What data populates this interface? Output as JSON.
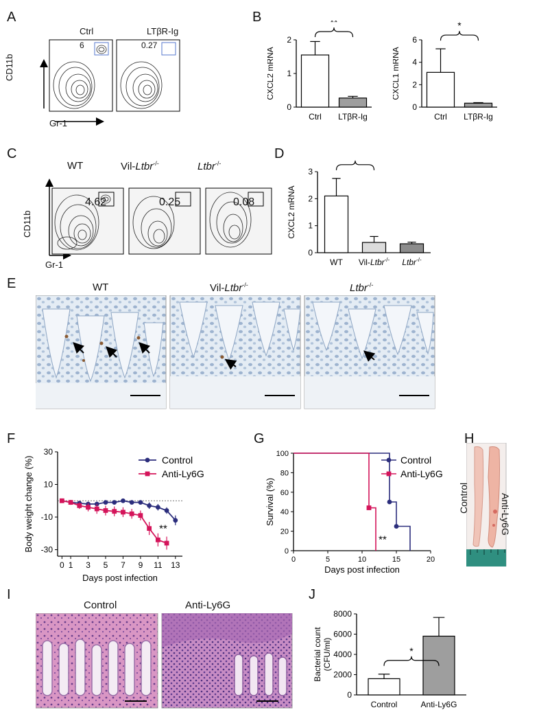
{
  "panel_letters": [
    "A",
    "B",
    "C",
    "D",
    "E",
    "F",
    "G",
    "H",
    "I",
    "J"
  ],
  "A": {
    "gates": [
      {
        "title": "Ctrl",
        "value": "6"
      },
      {
        "title": "LTβR-Ig",
        "value": "0.27"
      }
    ],
    "y_axis": "CD11b",
    "x_axis": "Gr-1"
  },
  "C": {
    "gates": [
      {
        "title": "WT",
        "value": "4.62"
      },
      {
        "title_prefix": "Vil-",
        "title_gene": "Ltbr",
        "title_sup": "-/-",
        "value": "0.25"
      },
      {
        "title_prefix": "",
        "title_gene": "Ltbr",
        "title_sup": "-/-",
        "value": "0.08"
      }
    ],
    "y_axis": "CD11b",
    "x_axis": "Gr-1"
  },
  "E": {
    "titles": [
      {
        "prefix": "WT",
        "gene": "",
        "sup": ""
      },
      {
        "prefix": "Vil-",
        "gene": "Ltbr",
        "sup": "-/-"
      },
      {
        "prefix": "",
        "gene": "Ltbr",
        "sup": "-/-"
      }
    ]
  },
  "H": {
    "labels": [
      "Control",
      "Anti-Ly6G"
    ]
  },
  "I": {
    "titles": [
      "Control",
      "Anti-Ly6G"
    ]
  },
  "chart_data": [
    {
      "id": "B1",
      "type": "bar",
      "categories": [
        "Ctrl",
        "LTβR-Ig"
      ],
      "values": [
        1.55,
        0.27
      ],
      "errors": [
        0.4,
        0.05
      ],
      "ylabel": "CXCL2 mRNA",
      "ylim": [
        0,
        2
      ],
      "yticks": [
        0,
        1,
        2
      ],
      "significance": "**",
      "colors": [
        "#ffffff",
        "#9e9e9e"
      ]
    },
    {
      "id": "B2",
      "type": "bar",
      "categories": [
        "Ctrl",
        "LTβR-Ig"
      ],
      "values": [
        3.1,
        0.35
      ],
      "errors": [
        2.1,
        0.05
      ],
      "ylabel": "CXCL1 mRNA",
      "ylim": [
        0,
        6
      ],
      "yticks": [
        0,
        2,
        4,
        6
      ],
      "significance": "*",
      "colors": [
        "#ffffff",
        "#9e9e9e"
      ]
    },
    {
      "id": "D",
      "type": "bar",
      "categories": [
        "WT",
        "Vil-Ltbr-/-",
        "Ltbr-/-"
      ],
      "values": [
        2.1,
        0.38,
        0.33
      ],
      "errors": [
        0.65,
        0.22,
        0.06
      ],
      "ylabel": "CXCL2 mRNA",
      "ylim": [
        0,
        3
      ],
      "yticks": [
        0,
        1,
        2,
        3
      ],
      "significance": "*",
      "colors": [
        "#ffffff",
        "#dcdcdc",
        "#8c8c8c"
      ]
    },
    {
      "id": "F",
      "type": "line",
      "xlabel": "Days post infection",
      "ylabel": "Body weight change (%)",
      "xlim": [
        -0.5,
        13.8
      ],
      "ylim": [
        -34,
        30
      ],
      "xticks": [
        0,
        1,
        3,
        5,
        7,
        9,
        11,
        13
      ],
      "yticks": [
        -30,
        -10,
        10,
        30
      ],
      "significance": "**",
      "series": [
        {
          "name": "Control",
          "color": "#2b2d7c",
          "x": [
            0,
            1,
            2,
            3,
            4,
            5,
            6,
            7,
            8,
            9,
            10,
            11,
            12,
            13
          ],
          "y": [
            0,
            -1,
            -1.5,
            -2,
            -2,
            -1,
            -1,
            0,
            -1,
            -1,
            -3,
            -4,
            -6,
            -12
          ],
          "err": [
            1,
            1,
            1,
            1,
            1,
            1,
            1,
            1,
            1,
            1,
            2,
            2,
            2,
            3
          ]
        },
        {
          "name": "Anti-Ly6G",
          "color": "#d4145a",
          "x": [
            0,
            1,
            2,
            3,
            4,
            5,
            6,
            7,
            8,
            9,
            10,
            11,
            12
          ],
          "y": [
            0,
            -1,
            -3,
            -4,
            -5,
            -6,
            -6.5,
            -7,
            -8,
            -9,
            -17,
            -24,
            -26
          ],
          "err": [
            1,
            1.5,
            2,
            2.5,
            3,
            3,
            3,
            3,
            3,
            3,
            4,
            4,
            4
          ]
        }
      ]
    },
    {
      "id": "G",
      "type": "line",
      "xlabel": "Days post infection",
      "ylabel": "Survival (%)",
      "xlim": [
        0,
        20
      ],
      "ylim": [
        0,
        100
      ],
      "xticks": [
        0,
        5,
        10,
        15,
        20
      ],
      "yticks": [
        0,
        20,
        40,
        60,
        80,
        100
      ],
      "significance": "**",
      "series": [
        {
          "name": "Control",
          "color": "#2b2d7c",
          "steps": [
            [
              0,
              100
            ],
            [
              14,
              100
            ],
            [
              14,
              50
            ],
            [
              15,
              50
            ],
            [
              15,
              25
            ],
            [
              17,
              25
            ],
            [
              17,
              0
            ]
          ],
          "markers": [
            [
              14,
              50
            ],
            [
              15,
              25
            ]
          ]
        },
        {
          "name": "Anti-Ly6G",
          "color": "#d4145a",
          "steps": [
            [
              0,
              100
            ],
            [
              11,
              100
            ],
            [
              11,
              44
            ],
            [
              12,
              44
            ],
            [
              12,
              0
            ]
          ],
          "markers": [
            [
              11,
              44
            ]
          ]
        }
      ]
    },
    {
      "id": "J",
      "type": "bar",
      "categories": [
        "Control",
        "Anti-Ly6G"
      ],
      "values": [
        1600,
        5800
      ],
      "errors": [
        450,
        1850
      ],
      "ylabel": "Bacterial count (CFU/ml)",
      "ylim": [
        0,
        8000
      ],
      "yticks": [
        0,
        2000,
        4000,
        6000,
        8000
      ],
      "significance": "*",
      "colors": [
        "#ffffff",
        "#9e9e9e"
      ]
    }
  ]
}
